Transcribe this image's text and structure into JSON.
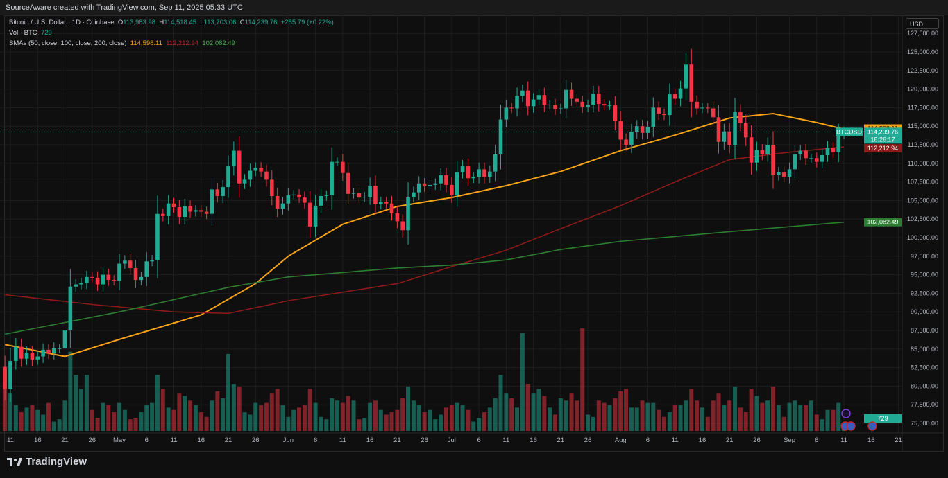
{
  "header": {
    "attribution": "SourceAware created with TradingView.com, Sep 11, 2025 05:33 UTC"
  },
  "legend": {
    "symbol": "Bitcoin / U.S. Dollar · 1D · Coinbase",
    "o_label": "O",
    "o": "113,983.98",
    "h_label": "H",
    "h": "114,518.45",
    "l_label": "L",
    "l": "113,703.06",
    "c_label": "C",
    "c": "114,239.76",
    "change": "+255.79 (+0.22%)",
    "vol_label": "Vol · BTC",
    "vol": "729",
    "sma_label": "SMAs (50, close, 100, close, 200, close)",
    "sma50": "114,598.11",
    "sma100": "112,212.94",
    "sma200": "102,082.49"
  },
  "currency_button": "USD",
  "symbol_tag": "BTCUSD",
  "price_labels": {
    "sma50": "114,598.11",
    "last": "114,239.76",
    "countdown": "18:26:17",
    "sma100": "112,212.94",
    "sma200": "102,082.49",
    "volume": "729"
  },
  "footer": {
    "logo_text": "TradingView"
  },
  "colors": {
    "up": "#22ab94",
    "down": "#f23645",
    "sma50": "#f7a21b",
    "sma100": "#8b1a1a",
    "sma200": "#2e7d32",
    "background": "#0f0f0f"
  },
  "chart_data": {
    "type": "candlestick",
    "start_date": "2025-04-10",
    "first_open": 82600,
    "ylim": [
      75000,
      127500
    ],
    "grid": true,
    "y_ticks": [
      "127,500.00",
      "125,000.00",
      "122,500.00",
      "120,000.00",
      "117,500.00",
      "115,000.00",
      "112,500.00",
      "110,000.00",
      "107,500.00",
      "105,000.00",
      "102,500.00",
      "100,000.00",
      "97,500.00",
      "95,000.00",
      "92,500.00",
      "90,000.00",
      "87,500.00",
      "85,000.00",
      "82,500.00",
      "80,000.00",
      "77,500.00",
      "75,000.00"
    ],
    "x_ticks": [
      {
        "date": "2025-04-11",
        "label": "11"
      },
      {
        "date": "2025-04-16",
        "label": "16"
      },
      {
        "date": "2025-04-21",
        "label": "21"
      },
      {
        "date": "2025-04-26",
        "label": "26"
      },
      {
        "date": "2025-05-01",
        "label": "May"
      },
      {
        "date": "2025-05-06",
        "label": "6"
      },
      {
        "date": "2025-05-11",
        "label": "11"
      },
      {
        "date": "2025-05-16",
        "label": "16"
      },
      {
        "date": "2025-05-21",
        "label": "21"
      },
      {
        "date": "2025-05-26",
        "label": "26"
      },
      {
        "date": "2025-06-01",
        "label": "Jun"
      },
      {
        "date": "2025-06-06",
        "label": "6"
      },
      {
        "date": "2025-06-11",
        "label": "11"
      },
      {
        "date": "2025-06-16",
        "label": "16"
      },
      {
        "date": "2025-06-21",
        "label": "21"
      },
      {
        "date": "2025-06-26",
        "label": "26"
      },
      {
        "date": "2025-07-01",
        "label": "Jul"
      },
      {
        "date": "2025-07-06",
        "label": "6"
      },
      {
        "date": "2025-07-11",
        "label": "11"
      },
      {
        "date": "2025-07-16",
        "label": "16"
      },
      {
        "date": "2025-07-21",
        "label": "21"
      },
      {
        "date": "2025-07-26",
        "label": "26"
      },
      {
        "date": "2025-08-01",
        "label": "Aug"
      },
      {
        "date": "2025-08-06",
        "label": "6"
      },
      {
        "date": "2025-08-11",
        "label": "11"
      },
      {
        "date": "2025-08-16",
        "label": "16"
      },
      {
        "date": "2025-08-21",
        "label": "21"
      },
      {
        "date": "2025-08-26",
        "label": "26"
      },
      {
        "date": "2025-09-01",
        "label": "Sep"
      },
      {
        "date": "2025-09-06",
        "label": "6"
      },
      {
        "date": "2025-09-11",
        "label": "11"
      },
      {
        "date": "2025-09-16",
        "label": "16"
      },
      {
        "date": "2025-09-21",
        "label": "21"
      }
    ],
    "close": [
      79600,
      83400,
      85300,
      83700,
      84500,
      83600,
      84000,
      84900,
      84400,
      85100,
      85100,
      87500,
      93400,
      93700,
      93900,
      94700,
      94600,
      93700,
      95000,
      94300,
      94200,
      96500,
      96900,
      95900,
      94300,
      94700,
      96800,
      97000,
      103200,
      102900,
      104600,
      104100,
      102800,
      104200,
      103500,
      103700,
      103500,
      103200,
      106500,
      105600,
      106800,
      109600,
      111700,
      107300,
      107800,
      109000,
      109400,
      108900,
      107800,
      105600,
      103900,
      104600,
      105700,
      105800,
      105400,
      104700,
      101500,
      104300,
      105600,
      105700,
      110200,
      110200,
      108700,
      105900,
      106000,
      105400,
      105500,
      107000,
      104500,
      104800,
      104600,
      103300,
      102200,
      101000,
      105500,
      106100,
      107300,
      106900,
      107100,
      107300,
      108400,
      107100,
      105700,
      108800,
      109600,
      108000,
      108200,
      109200,
      108200,
      108900,
      111200,
      115900,
      117500,
      117400,
      119100,
      119800,
      117700,
      118600,
      119200,
      117900,
      117900,
      117300,
      117400,
      119900,
      118700,
      118300,
      117600,
      117900,
      119400,
      118000,
      117800,
      117800,
      115700,
      113200,
      112500,
      114200,
      115000,
      114100,
      114900,
      117500,
      116700,
      116500,
      119300,
      118700,
      120100,
      123300,
      118300,
      117400,
      117500,
      117400,
      116200,
      112900,
      114300,
      112500,
      116900,
      115400,
      113500,
      110100,
      111800,
      111200,
      112500,
      108400,
      108800,
      108200,
      109200,
      111200,
      111700,
      110700,
      110700,
      110200,
      111100,
      112100,
      111500,
      113983.98,
      114239.76
    ],
    "volume": [
      9000,
      8000,
      5500,
      4000,
      5000,
      5500,
      4500,
      3500,
      6000,
      2000,
      2500,
      6500,
      17000,
      12000,
      9000,
      12000,
      4500,
      2800,
      6000,
      5500,
      4000,
      6000,
      4500,
      2500,
      2800,
      4000,
      5500,
      6000,
      12000,
      9000,
      5000,
      4500,
      8000,
      7500,
      6500,
      5500,
      4000,
      3000,
      6500,
      8500,
      7000,
      16500,
      10000,
      9500,
      4000,
      3500,
      6000,
      5500,
      6000,
      8000,
      9000,
      5500,
      3000,
      4500,
      5000,
      5500,
      9000,
      6000,
      3000,
      2500,
      7000,
      6500,
      6000,
      7500,
      6500,
      2500,
      2800,
      6000,
      6500,
      4500,
      3500,
      4000,
      4500,
      7000,
      9500,
      6500,
      5500,
      4000,
      4500,
      2500,
      3500,
      5000,
      5500,
      6000,
      5500,
      4500,
      2000,
      2800,
      4000,
      5000,
      7000,
      12000,
      8000,
      7000,
      5000,
      21000,
      10000,
      8000,
      9000,
      7500,
      5000,
      3500,
      7000,
      6500,
      8000,
      6500,
      22000,
      3500,
      3000,
      6500,
      6000,
      5500,
      7000,
      8500,
      9000,
      5000,
      5000,
      6500,
      6000,
      6000,
      4500,
      3000,
      4000,
      5500,
      5500,
      6500,
      9000,
      6500,
      5000,
      3000,
      6500,
      8000,
      5500,
      6500,
      9500,
      5000,
      4000,
      9000,
      7500,
      6000,
      6500,
      9500,
      5500,
      3000,
      6000,
      6500,
      5500,
      5500,
      6500,
      3500,
      2500,
      4500,
      4500,
      6000,
      729
    ],
    "series": [
      {
        "name": "SMA 50",
        "points": [
          [
            "2025-04-10",
            85600
          ],
          [
            "2025-04-21",
            84000
          ],
          [
            "2025-05-01",
            86300
          ],
          [
            "2025-05-16",
            89600
          ],
          [
            "2025-05-26",
            93800
          ],
          [
            "2025-06-01",
            97500
          ],
          [
            "2025-06-11",
            101800
          ],
          [
            "2025-06-21",
            104200
          ],
          [
            "2025-07-01",
            105400
          ],
          [
            "2025-07-11",
            107000
          ],
          [
            "2025-07-21",
            108900
          ],
          [
            "2025-08-01",
            111700
          ],
          [
            "2025-08-11",
            113800
          ],
          [
            "2025-08-21",
            116100
          ],
          [
            "2025-08-29",
            116700
          ],
          [
            "2025-09-06",
            115500
          ],
          [
            "2025-09-11",
            114598.11
          ]
        ]
      },
      {
        "name": "SMA 100",
        "points": [
          [
            "2025-04-10",
            92300
          ],
          [
            "2025-04-26",
            91000
          ],
          [
            "2025-05-11",
            90000
          ],
          [
            "2025-05-21",
            89800
          ],
          [
            "2025-06-01",
            91500
          ],
          [
            "2025-06-21",
            93800
          ],
          [
            "2025-07-01",
            96100
          ],
          [
            "2025-07-11",
            98300
          ],
          [
            "2025-07-21",
            101200
          ],
          [
            "2025-08-01",
            104300
          ],
          [
            "2025-08-11",
            107500
          ],
          [
            "2025-08-21",
            110500
          ],
          [
            "2025-09-01",
            111500
          ],
          [
            "2025-09-11",
            112212.94
          ]
        ]
      },
      {
        "name": "SMA 200",
        "points": [
          [
            "2025-04-10",
            87000
          ],
          [
            "2025-05-01",
            90000
          ],
          [
            "2025-05-21",
            93300
          ],
          [
            "2025-06-01",
            94700
          ],
          [
            "2025-06-21",
            95900
          ],
          [
            "2025-07-01",
            96300
          ],
          [
            "2025-07-11",
            97000
          ],
          [
            "2025-07-21",
            98400
          ],
          [
            "2025-08-01",
            99500
          ],
          [
            "2025-08-21",
            100800
          ],
          [
            "2025-09-11",
            102082.49
          ]
        ]
      }
    ]
  }
}
